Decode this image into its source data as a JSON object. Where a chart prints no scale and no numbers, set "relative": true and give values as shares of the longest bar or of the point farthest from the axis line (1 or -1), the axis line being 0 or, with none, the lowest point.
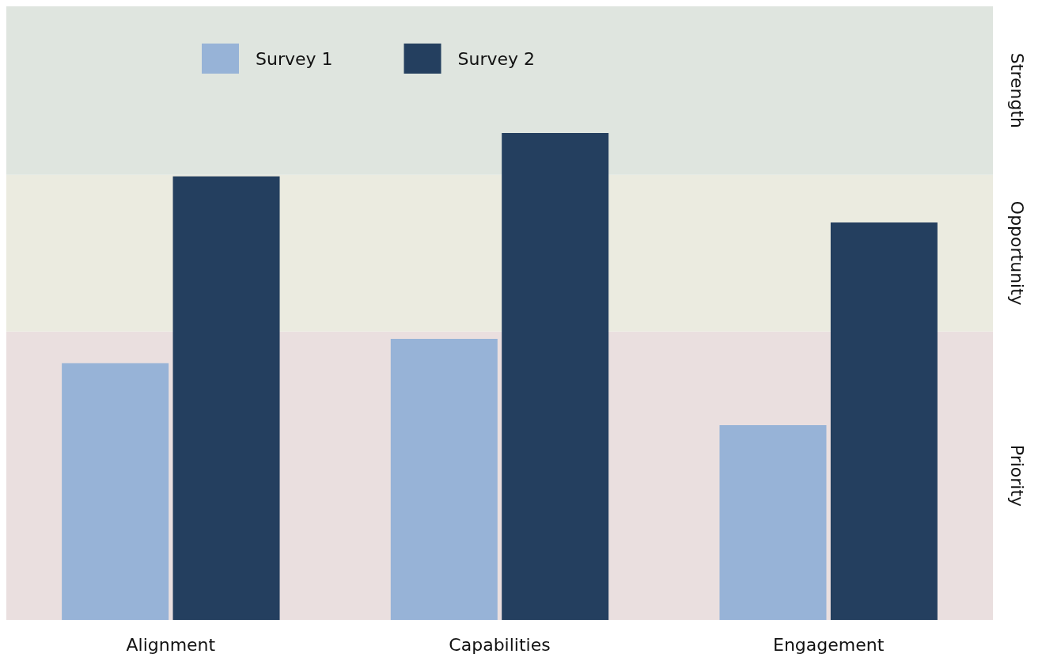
{
  "chart_data": {
    "type": "bar",
    "relative": true,
    "categories": [
      "Alignment",
      "Capabilities",
      "Engagement"
    ],
    "series": [
      {
        "name": "Survey 1",
        "color": "#97b3d7",
        "values": [
          0.527,
          0.577,
          0.4
        ]
      },
      {
        "name": "Survey 2",
        "color": "#243f5f",
        "values": [
          0.911,
          1,
          0.816
        ]
      }
    ],
    "bands": [
      {
        "axis": "y",
        "from": 0,
        "to": 0.592,
        "label": "Priority",
        "color": "#eadfdf"
      },
      {
        "axis": "y",
        "from": 0.592,
        "to": 0.914,
        "label": "Opportunity",
        "color": "#ebebe0"
      },
      {
        "axis": "y",
        "from": 0.914,
        "to": 1.26,
        "label": "Strength",
        "color": "#dfe5df"
      }
    ],
    "legend": "top"
  }
}
